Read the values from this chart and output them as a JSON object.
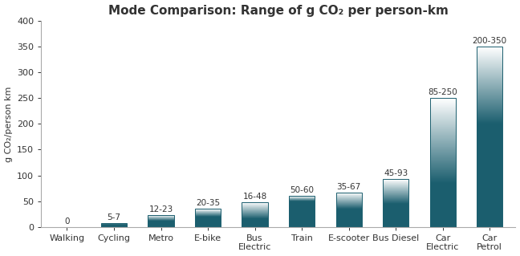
{
  "categories": [
    "Walking",
    "Cycling",
    "Metro",
    "E-bike",
    "Bus\nElectric",
    "Train",
    "E-scooter",
    "Bus Diesel",
    "Car\nElectric",
    "Car\nPetrol"
  ],
  "min_vals": [
    0,
    5,
    12,
    20,
    16,
    50,
    35,
    45,
    85,
    200
  ],
  "max_vals": [
    0,
    7,
    23,
    35,
    48,
    60,
    67,
    93,
    250,
    350
  ],
  "labels": [
    "0",
    "5-7",
    "12-23",
    "20-35",
    "16-48",
    "50-60",
    "35-67",
    "45-93",
    "85-250",
    "200-350"
  ],
  "title": "Mode Comparison: Range of g CO₂ per person-km",
  "ylabel": "g CO₂/person km",
  "ylim": [
    0,
    400
  ],
  "yticks": [
    0,
    50,
    100,
    150,
    200,
    250,
    300,
    350,
    400
  ],
  "dark_color": "#1b5e6e",
  "gradient_top_color": "#c8ecea",
  "white_color": "#ffffff",
  "background_color": "#ffffff",
  "bar_width": 0.55,
  "figsize": [
    6.48,
    3.19
  ],
  "dpi": 100,
  "title_fontsize": 11,
  "tick_fontsize": 8,
  "ylabel_fontsize": 8,
  "label_fontsize": 7.5,
  "spine_color": "#aaaaaa",
  "text_color": "#333333"
}
